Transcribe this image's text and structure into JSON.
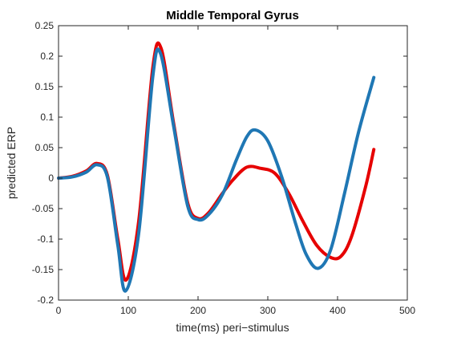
{
  "chart_data": {
    "type": "line",
    "title": "Middle Temporal Gyrus",
    "xlabel": "time(ms) peri−stimulus",
    "ylabel": "predicted ERP",
    "xlim": [
      0,
      500
    ],
    "ylim": [
      -0.2,
      0.25
    ],
    "xticks": [
      0,
      100,
      200,
      300,
      400,
      500
    ],
    "yticks": [
      -0.2,
      -0.15,
      -0.1,
      -0.05,
      0,
      0.05,
      0.1,
      0.15,
      0.2,
      0.25
    ],
    "xtick_labels": [
      "0",
      "100",
      "200",
      "300",
      "400",
      "500"
    ],
    "ytick_labels": [
      "-0.2",
      "-0.15",
      "-0.1",
      "-0.05",
      "0",
      "0.05",
      "0.1",
      "0.15",
      "0.2",
      "0.25"
    ],
    "grid": false,
    "legend": "none",
    "series": [
      {
        "color": "#e60000",
        "x": [
          0,
          20,
          40,
          55,
          70,
          85,
          97,
          115,
          135,
          147,
          165,
          185,
          200,
          215,
          235,
          250,
          270,
          290,
          310,
          330,
          350,
          370,
          390,
          405,
          420,
          440,
          452
        ],
        "y": [
          0,
          0.003,
          0.012,
          0.024,
          0.005,
          -0.1,
          -0.167,
          -0.07,
          0.18,
          0.213,
          0.09,
          -0.04,
          -0.066,
          -0.057,
          -0.025,
          -0.003,
          0.018,
          0.016,
          0.008,
          -0.025,
          -0.07,
          -0.11,
          -0.13,
          -0.128,
          -0.096,
          -0.015,
          0.047
        ]
      },
      {
        "color": "#1f77b4",
        "x": [
          0,
          20,
          40,
          55,
          70,
          85,
          96,
          115,
          135,
          146,
          165,
          185,
          200,
          215,
          235,
          255,
          270,
          282,
          300,
          320,
          340,
          355,
          372,
          390,
          410,
          430,
          452
        ],
        "y": [
          0,
          0.002,
          0.01,
          0.022,
          0.002,
          -0.11,
          -0.185,
          -0.09,
          0.165,
          0.205,
          0.085,
          -0.045,
          -0.068,
          -0.06,
          -0.027,
          0.03,
          0.068,
          0.079,
          0.061,
          0.002,
          -0.075,
          -0.125,
          -0.148,
          -0.118,
          -0.025,
          0.075,
          0.165
        ]
      }
    ]
  }
}
